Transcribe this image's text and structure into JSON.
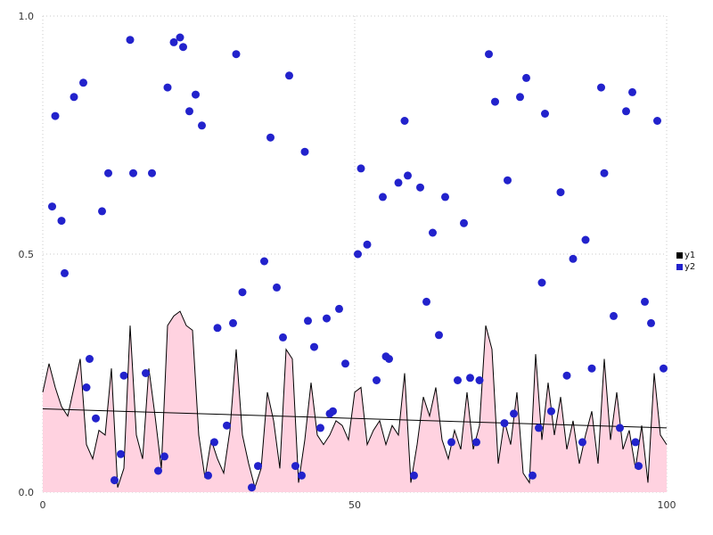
{
  "chart": {
    "background": "#ffffff",
    "grid_color": "#c9c9c9",
    "tick_label_color": "#333333"
  },
  "legend": {
    "items": [
      {
        "label": "y1",
        "color": "#000000"
      },
      {
        "label": "y2",
        "color": "#2222cc"
      }
    ]
  },
  "chart_data": {
    "type": "mixed",
    "title": "",
    "xlabel": "",
    "ylabel": "",
    "xlim": [
      0,
      100
    ],
    "ylim": [
      0,
      1
    ],
    "grid": "dotted",
    "legend_position": "right",
    "x_ticks": [
      {
        "value": 0,
        "label": "0"
      },
      {
        "value": 50,
        "label": "50"
      },
      {
        "value": 100,
        "label": "100"
      }
    ],
    "y_ticks": [
      {
        "value": 0,
        "label": "0.0"
      },
      {
        "value": 0.5,
        "label": "0.5"
      },
      {
        "value": 1,
        "label": "1.0"
      }
    ],
    "series": [
      {
        "name": "y1",
        "type": "area",
        "line_color": "#000000",
        "fill_color": "#ffd2e0",
        "x_start": 0,
        "x_step": 1,
        "values": [
          0.21,
          0.27,
          0.22,
          0.18,
          0.16,
          0.22,
          0.28,
          0.1,
          0.07,
          0.13,
          0.12,
          0.26,
          0.01,
          0.05,
          0.35,
          0.12,
          0.07,
          0.26,
          0.16,
          0.05,
          0.35,
          0.37,
          0.38,
          0.35,
          0.34,
          0.12,
          0.03,
          0.11,
          0.07,
          0.04,
          0.13,
          0.3,
          0.12,
          0.06,
          0.01,
          0.05,
          0.21,
          0.15,
          0.05,
          0.3,
          0.28,
          0.02,
          0.11,
          0.23,
          0.12,
          0.1,
          0.12,
          0.15,
          0.14,
          0.11,
          0.21,
          0.22,
          0.1,
          0.13,
          0.15,
          0.1,
          0.14,
          0.12,
          0.25,
          0.02,
          0.1,
          0.2,
          0.16,
          0.22,
          0.11,
          0.07,
          0.13,
          0.09,
          0.21,
          0.09,
          0.14,
          0.35,
          0.3,
          0.06,
          0.15,
          0.1,
          0.21,
          0.04,
          0.02,
          0.29,
          0.11,
          0.23,
          0.12,
          0.2,
          0.09,
          0.15,
          0.06,
          0.12,
          0.17,
          0.06,
          0.28,
          0.11,
          0.21,
          0.09,
          0.13,
          0.05,
          0.14,
          0.02,
          0.25,
          0.12,
          0.1
        ]
      },
      {
        "name": "y1-trend",
        "type": "line",
        "line_color": "#000000",
        "points": [
          [
            0,
            0.175
          ],
          [
            100,
            0.135
          ]
        ]
      },
      {
        "name": "y2",
        "type": "scatter",
        "color": "#2222cc",
        "points": [
          [
            1.5,
            0.6
          ],
          [
            2,
            0.79
          ],
          [
            3,
            0.57
          ],
          [
            3.5,
            0.46
          ],
          [
            5,
            0.83
          ],
          [
            6.5,
            0.86
          ],
          [
            7,
            0.22
          ],
          [
            7.5,
            0.28
          ],
          [
            8.5,
            0.155
          ],
          [
            9.5,
            0.59
          ],
          [
            10.5,
            0.67
          ],
          [
            11.5,
            0.025
          ],
          [
            12.5,
            0.08
          ],
          [
            13,
            0.245
          ],
          [
            14,
            0.95
          ],
          [
            14.5,
            0.67
          ],
          [
            16.5,
            0.25
          ],
          [
            17.5,
            0.67
          ],
          [
            18.5,
            0.045
          ],
          [
            19.5,
            0.075
          ],
          [
            20,
            0.85
          ],
          [
            21,
            0.945
          ],
          [
            22,
            0.955
          ],
          [
            22.5,
            0.935
          ],
          [
            23.5,
            0.8
          ],
          [
            24.5,
            0.835
          ],
          [
            25.5,
            0.77
          ],
          [
            26.5,
            0.035
          ],
          [
            27.5,
            0.105
          ],
          [
            28,
            0.345
          ],
          [
            29.5,
            0.14
          ],
          [
            30.5,
            0.355
          ],
          [
            31,
            0.92
          ],
          [
            32,
            0.42
          ],
          [
            33.5,
            0.01
          ],
          [
            34.5,
            0.055
          ],
          [
            35.5,
            0.485
          ],
          [
            36.5,
            0.745
          ],
          [
            37.5,
            0.43
          ],
          [
            38.5,
            0.325
          ],
          [
            39.5,
            0.875
          ],
          [
            40.5,
            0.055
          ],
          [
            41.5,
            0.035
          ],
          [
            42,
            0.715
          ],
          [
            42.5,
            0.36
          ],
          [
            43.5,
            0.305
          ],
          [
            44.5,
            0.135
          ],
          [
            45.5,
            0.365
          ],
          [
            46,
            0.165
          ],
          [
            46.5,
            0.17
          ],
          [
            47.5,
            0.385
          ],
          [
            48.5,
            0.27
          ],
          [
            50.5,
            0.5
          ],
          [
            51,
            0.68
          ],
          [
            52,
            0.52
          ],
          [
            53.5,
            0.235
          ],
          [
            54.5,
            0.62
          ],
          [
            55,
            0.285
          ],
          [
            55.5,
            0.28
          ],
          [
            57,
            0.65
          ],
          [
            58,
            0.78
          ],
          [
            58.5,
            0.665
          ],
          [
            59.5,
            0.035
          ],
          [
            60.5,
            0.64
          ],
          [
            61.5,
            0.4
          ],
          [
            62.5,
            0.545
          ],
          [
            63.5,
            0.33
          ],
          [
            64.5,
            0.62
          ],
          [
            65.5,
            0.105
          ],
          [
            66.5,
            0.235
          ],
          [
            67.5,
            0.565
          ],
          [
            68.5,
            0.24
          ],
          [
            69.5,
            0.105
          ],
          [
            70,
            0.235
          ],
          [
            71.5,
            0.92
          ],
          [
            72.5,
            0.82
          ],
          [
            74,
            0.145
          ],
          [
            74.5,
            0.655
          ],
          [
            75.5,
            0.165
          ],
          [
            76.5,
            0.83
          ],
          [
            77.5,
            0.87
          ],
          [
            78.5,
            0.035
          ],
          [
            79.5,
            0.135
          ],
          [
            80,
            0.44
          ],
          [
            80.5,
            0.795
          ],
          [
            81.5,
            0.17
          ],
          [
            83,
            0.63
          ],
          [
            84,
            0.245
          ],
          [
            85,
            0.49
          ],
          [
            86.5,
            0.105
          ],
          [
            87,
            0.53
          ],
          [
            88,
            0.26
          ],
          [
            89.5,
            0.85
          ],
          [
            90,
            0.67
          ],
          [
            91.5,
            0.37
          ],
          [
            92.5,
            0.135
          ],
          [
            93.5,
            0.8
          ],
          [
            94.5,
            0.84
          ],
          [
            95,
            0.105
          ],
          [
            95.5,
            0.055
          ],
          [
            96.5,
            0.4
          ],
          [
            97.5,
            0.355
          ],
          [
            98.5,
            0.78
          ],
          [
            99.5,
            0.26
          ]
        ]
      }
    ]
  }
}
